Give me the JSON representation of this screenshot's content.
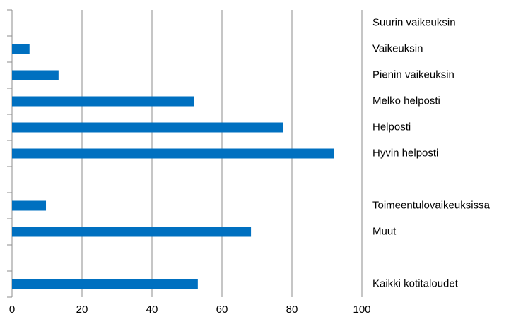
{
  "chart_data": {
    "type": "barh",
    "categories": [
      "Suurin vaikeuksin",
      "Vaikeuksin",
      "Pienin vaikeuksin",
      "Melko helposti",
      "Helposti",
      "Hyvin helposti",
      null,
      "Toimeentulovaikeuksissa",
      "Muut",
      null,
      "Kaikki kotitaloudet"
    ],
    "values": [
      null,
      5,
      13.3,
      52,
      77.4,
      92,
      null,
      9.7,
      68.3,
      null,
      53.1
    ],
    "color": "#0070c0",
    "xlim": [
      0,
      100
    ],
    "xticks": [
      0,
      20,
      40,
      60,
      80,
      100
    ],
    "grid": true
  }
}
